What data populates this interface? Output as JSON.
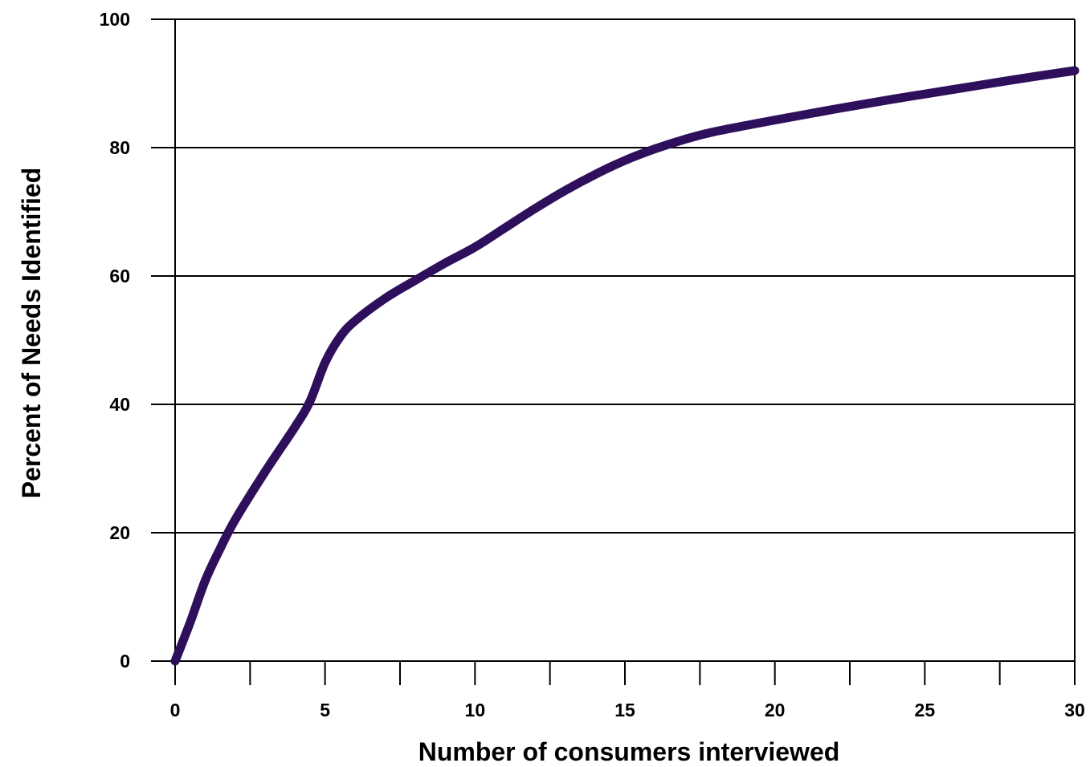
{
  "chart_data": {
    "type": "line",
    "title": "",
    "xlabel": "Number of consumers interviewed",
    "ylabel": "Percent of Needs Identified",
    "xlim": [
      0,
      30
    ],
    "ylim": [
      0,
      100
    ],
    "x_ticks": [
      0,
      5,
      10,
      15,
      20,
      25,
      30
    ],
    "x_tick_labels": [
      "0",
      "5",
      "10",
      "15",
      "20",
      "25",
      "30"
    ],
    "x_minor_ticks": [
      2.5,
      7.5,
      12.5,
      17.5,
      22.5,
      27.5
    ],
    "y_ticks": [
      0,
      20,
      40,
      60,
      80,
      100
    ],
    "y_tick_labels": [
      "0",
      "20",
      "40",
      "60",
      "80",
      "100"
    ],
    "grid": "horizontal",
    "legend": "none",
    "series": [
      {
        "color": "#2e0f5c",
        "x": [
          0,
          0.5,
          1,
          1.5,
          2,
          3,
          4,
          4.5,
          5,
          5.5,
          6,
          7,
          8,
          9,
          10,
          11,
          12,
          13,
          14,
          15,
          16,
          17,
          18,
          20,
          22,
          24,
          26,
          28,
          30
        ],
        "y": [
          0,
          6,
          12.5,
          17.5,
          22,
          29.5,
          36.5,
          40.5,
          46.5,
          50.5,
          53,
          56.5,
          59.3,
          62,
          64.5,
          67.5,
          70.5,
          73.3,
          75.8,
          78,
          79.8,
          81.3,
          82.5,
          84.3,
          86,
          87.6,
          89.1,
          90.6,
          92
        ]
      }
    ]
  }
}
